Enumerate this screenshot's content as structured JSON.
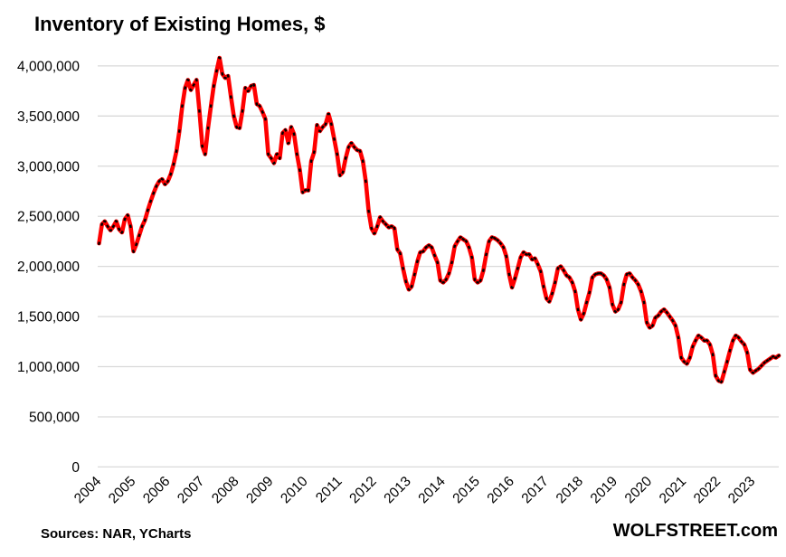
{
  "title": "Inventory of Existing Homes, $",
  "footer": {
    "sources": "Sources: NAR, YCharts",
    "site": "WOLFSTREET.com"
  },
  "colors": {
    "line": "#FF0000",
    "marker": "#000000",
    "gridline": "#D9D9D9",
    "text": "#000000",
    "background": "#FFFFFF"
  },
  "y_axis": {
    "ticks": [
      {
        "label": "4,000,000",
        "value": 4000000
      },
      {
        "label": "3,500,000",
        "value": 3500000
      },
      {
        "label": "3,000,000",
        "value": 3000000
      },
      {
        "label": "2,500,000",
        "value": 2500000
      },
      {
        "label": "2,000,000",
        "value": 2000000
      },
      {
        "label": "1,500,000",
        "value": 1500000
      },
      {
        "label": "1,000,000",
        "value": 1000000
      },
      {
        "label": "500,000",
        "value": 500000
      },
      {
        "label": "0",
        "value": 0
      }
    ]
  },
  "x_axis": {
    "years": [
      "2004",
      "2005",
      "2006",
      "2007",
      "2008",
      "2009",
      "2010",
      "2011",
      "2012",
      "2013",
      "2014",
      "2015",
      "2016",
      "2017",
      "2018",
      "2019",
      "2020",
      "2021",
      "2022",
      "2023"
    ]
  },
  "chart_data": {
    "type": "line",
    "title": "Inventory of Existing Homes, $",
    "frequency": "monthly",
    "x_start": "2004-01",
    "x_end": "2023-10",
    "ylim": [
      0,
      4000000
    ],
    "grid": "horizontal",
    "legend": "none",
    "line_style": "red solid line with short black dash markers at each monthly data point",
    "series": [
      {
        "name": "Inventory of Existing Homes",
        "values": [
          2230000,
          2420000,
          2450000,
          2400000,
          2360000,
          2400000,
          2450000,
          2370000,
          2340000,
          2470000,
          2510000,
          2400000,
          2150000,
          2220000,
          2310000,
          2400000,
          2460000,
          2560000,
          2650000,
          2730000,
          2800000,
          2850000,
          2870000,
          2820000,
          2850000,
          2920000,
          3020000,
          3150000,
          3350000,
          3600000,
          3780000,
          3860000,
          3760000,
          3810000,
          3860000,
          3550000,
          3200000,
          3120000,
          3380000,
          3600000,
          3800000,
          3950000,
          4080000,
          3920000,
          3880000,
          3900000,
          3690000,
          3500000,
          3390000,
          3380000,
          3550000,
          3780000,
          3750000,
          3800000,
          3810000,
          3620000,
          3600000,
          3540000,
          3470000,
          3120000,
          3080000,
          3030000,
          3120000,
          3080000,
          3330000,
          3360000,
          3230000,
          3390000,
          3320000,
          3120000,
          2960000,
          2740000,
          2760000,
          2760000,
          3050000,
          3140000,
          3410000,
          3350000,
          3390000,
          3420000,
          3520000,
          3420000,
          3270000,
          3120000,
          2910000,
          2940000,
          3080000,
          3190000,
          3230000,
          3190000,
          3160000,
          3150000,
          3050000,
          2850000,
          2550000,
          2380000,
          2330000,
          2400000,
          2490000,
          2450000,
          2420000,
          2390000,
          2400000,
          2380000,
          2170000,
          2130000,
          1980000,
          1850000,
          1770000,
          1800000,
          1920000,
          2050000,
          2140000,
          2150000,
          2190000,
          2210000,
          2190000,
          2110000,
          2040000,
          1860000,
          1840000,
          1870000,
          1930000,
          2040000,
          2200000,
          2250000,
          2290000,
          2270000,
          2250000,
          2190000,
          2090000,
          1870000,
          1840000,
          1860000,
          1960000,
          2120000,
          2250000,
          2290000,
          2280000,
          2260000,
          2230000,
          2190000,
          2100000,
          1920000,
          1790000,
          1880000,
          1980000,
          2090000,
          2140000,
          2120000,
          2120000,
          2070000,
          2080000,
          2020000,
          1950000,
          1800000,
          1680000,
          1650000,
          1730000,
          1840000,
          1980000,
          2000000,
          1960000,
          1910000,
          1890000,
          1840000,
          1750000,
          1570000,
          1470000,
          1530000,
          1640000,
          1740000,
          1890000,
          1920000,
          1930000,
          1930000,
          1910000,
          1870000,
          1790000,
          1620000,
          1550000,
          1570000,
          1640000,
          1820000,
          1920000,
          1930000,
          1890000,
          1860000,
          1820000,
          1750000,
          1640000,
          1440000,
          1390000,
          1410000,
          1490000,
          1510000,
          1550000,
          1570000,
          1540000,
          1500000,
          1460000,
          1410000,
          1290000,
          1090000,
          1050000,
          1030000,
          1090000,
          1200000,
          1260000,
          1310000,
          1290000,
          1260000,
          1260000,
          1220000,
          1120000,
          910000,
          860000,
          850000,
          950000,
          1050000,
          1160000,
          1260000,
          1310000,
          1290000,
          1250000,
          1220000,
          1140000,
          970000,
          940000,
          960000,
          980000,
          1010000,
          1040000,
          1060000,
          1080000,
          1100000,
          1090000,
          1110000
        ]
      }
    ]
  }
}
